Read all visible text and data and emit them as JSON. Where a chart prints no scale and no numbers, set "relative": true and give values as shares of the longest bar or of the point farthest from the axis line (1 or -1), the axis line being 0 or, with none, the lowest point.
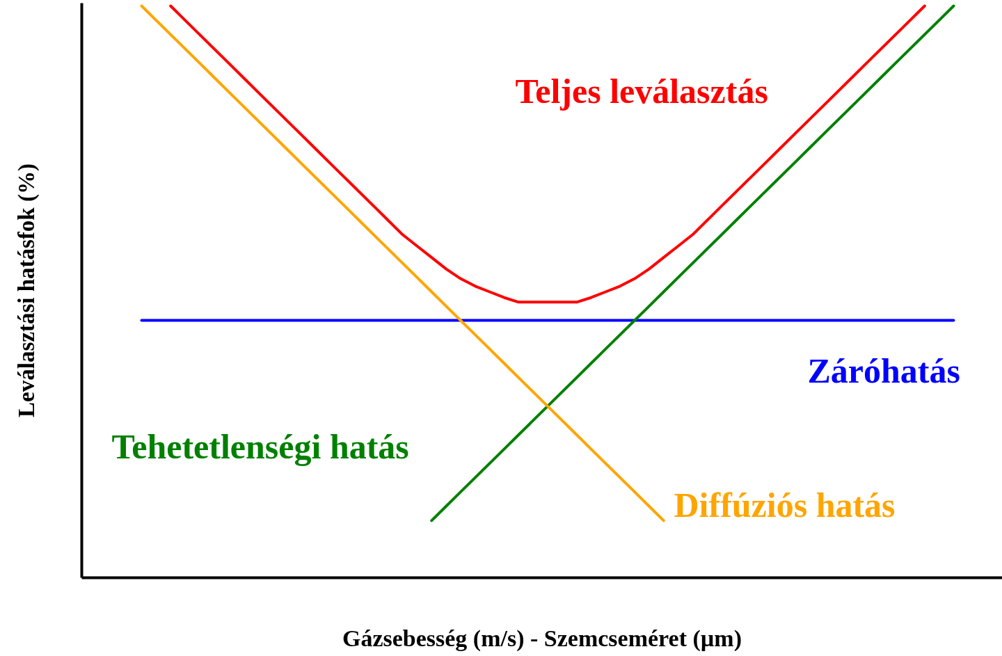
{
  "chart_data": {
    "type": "line",
    "relative": true,
    "xlabel": "Gázsebesség (m/s) - Szemcseméret (µm)",
    "ylabel": "Leválasztási hatásfok (%)",
    "categories": [
      null,
      null,
      null,
      null,
      null,
      null,
      null,
      null,
      null,
      null,
      null,
      null,
      null,
      null,
      null,
      null,
      null,
      null,
      null,
      null,
      null,
      null,
      null,
      null,
      null,
      null,
      null,
      null,
      null,
      null,
      null,
      null,
      null,
      null,
      null,
      null,
      null,
      null,
      null,
      null,
      null,
      null,
      null,
      null,
      null,
      null,
      null,
      null,
      null,
      null,
      null,
      null,
      null,
      null,
      null,
      null,
      null
    ],
    "series": [
      {
        "name": "Teljes leválasztás",
        "color": "#ff0000",
        "values": [
          null,
          null,
          1.0,
          0.975,
          0.95,
          0.925,
          0.9,
          0.875,
          0.85,
          0.825,
          0.8,
          0.775,
          0.75,
          0.725,
          0.7,
          0.675,
          0.65,
          0.625,
          0.6,
          0.58,
          0.56,
          0.54,
          0.523,
          0.51,
          0.5,
          0.49,
          0.482,
          0.482,
          0.482,
          0.482,
          0.482,
          0.49,
          0.5,
          0.51,
          0.523,
          0.54,
          0.56,
          0.58,
          0.6,
          0.625,
          0.65,
          0.675,
          0.7,
          0.725,
          0.75,
          0.775,
          0.8,
          0.825,
          0.85,
          0.875,
          0.9,
          0.925,
          0.95,
          0.975,
          1.0,
          null,
          null
        ]
      },
      {
        "name": "Záróhatás",
        "color": "#0000ff",
        "values": [
          0.45,
          0.45,
          0.45,
          0.45,
          0.45,
          0.45,
          0.45,
          0.45,
          0.45,
          0.45,
          0.45,
          0.45,
          0.45,
          0.45,
          0.45,
          0.45,
          0.45,
          0.45,
          0.45,
          0.45,
          0.45,
          0.45,
          0.45,
          0.45,
          0.45,
          0.45,
          0.45,
          0.45,
          0.45,
          0.45,
          0.45,
          0.45,
          0.45,
          0.45,
          0.45,
          0.45,
          0.45,
          0.45,
          0.45,
          0.45,
          0.45,
          0.45,
          0.45,
          0.45,
          0.45,
          0.45,
          0.45,
          0.45,
          0.45,
          0.45,
          0.45,
          0.45,
          0.45,
          0.45,
          0.45,
          0.45,
          0.45
        ]
      },
      {
        "name": "Tehetetlenségi hatás",
        "color": "#008000",
        "values": [
          null,
          null,
          null,
          null,
          null,
          null,
          null,
          null,
          null,
          null,
          null,
          null,
          null,
          null,
          null,
          null,
          null,
          null,
          null,
          null,
          0.1,
          0.125,
          0.15,
          0.175,
          0.2,
          0.225,
          0.25,
          0.275,
          0.3,
          0.325,
          0.35,
          0.375,
          0.4,
          0.425,
          0.45,
          0.475,
          0.5,
          0.525,
          0.55,
          0.575,
          0.6,
          0.625,
          0.65,
          0.675,
          0.7,
          0.725,
          0.75,
          0.775,
          0.8,
          0.825,
          0.85,
          0.875,
          0.9,
          0.925,
          0.95,
          0.975,
          1.0
        ]
      },
      {
        "name": "Diffúziós hatás",
        "color": "#ffa500",
        "values": [
          1.0,
          0.975,
          0.95,
          0.925,
          0.9,
          0.875,
          0.85,
          0.825,
          0.8,
          0.775,
          0.75,
          0.725,
          0.7,
          0.675,
          0.65,
          0.625,
          0.6,
          0.575,
          0.55,
          0.525,
          0.5,
          0.475,
          0.45,
          0.425,
          0.4,
          0.375,
          0.35,
          0.325,
          0.3,
          0.275,
          0.25,
          0.225,
          0.2,
          0.175,
          0.15,
          0.125,
          0.1,
          null,
          null,
          null,
          null,
          null,
          null,
          null,
          null,
          null,
          null,
          null,
          null,
          null,
          null,
          null,
          null,
          null,
          null,
          null,
          null
        ]
      }
    ]
  }
}
